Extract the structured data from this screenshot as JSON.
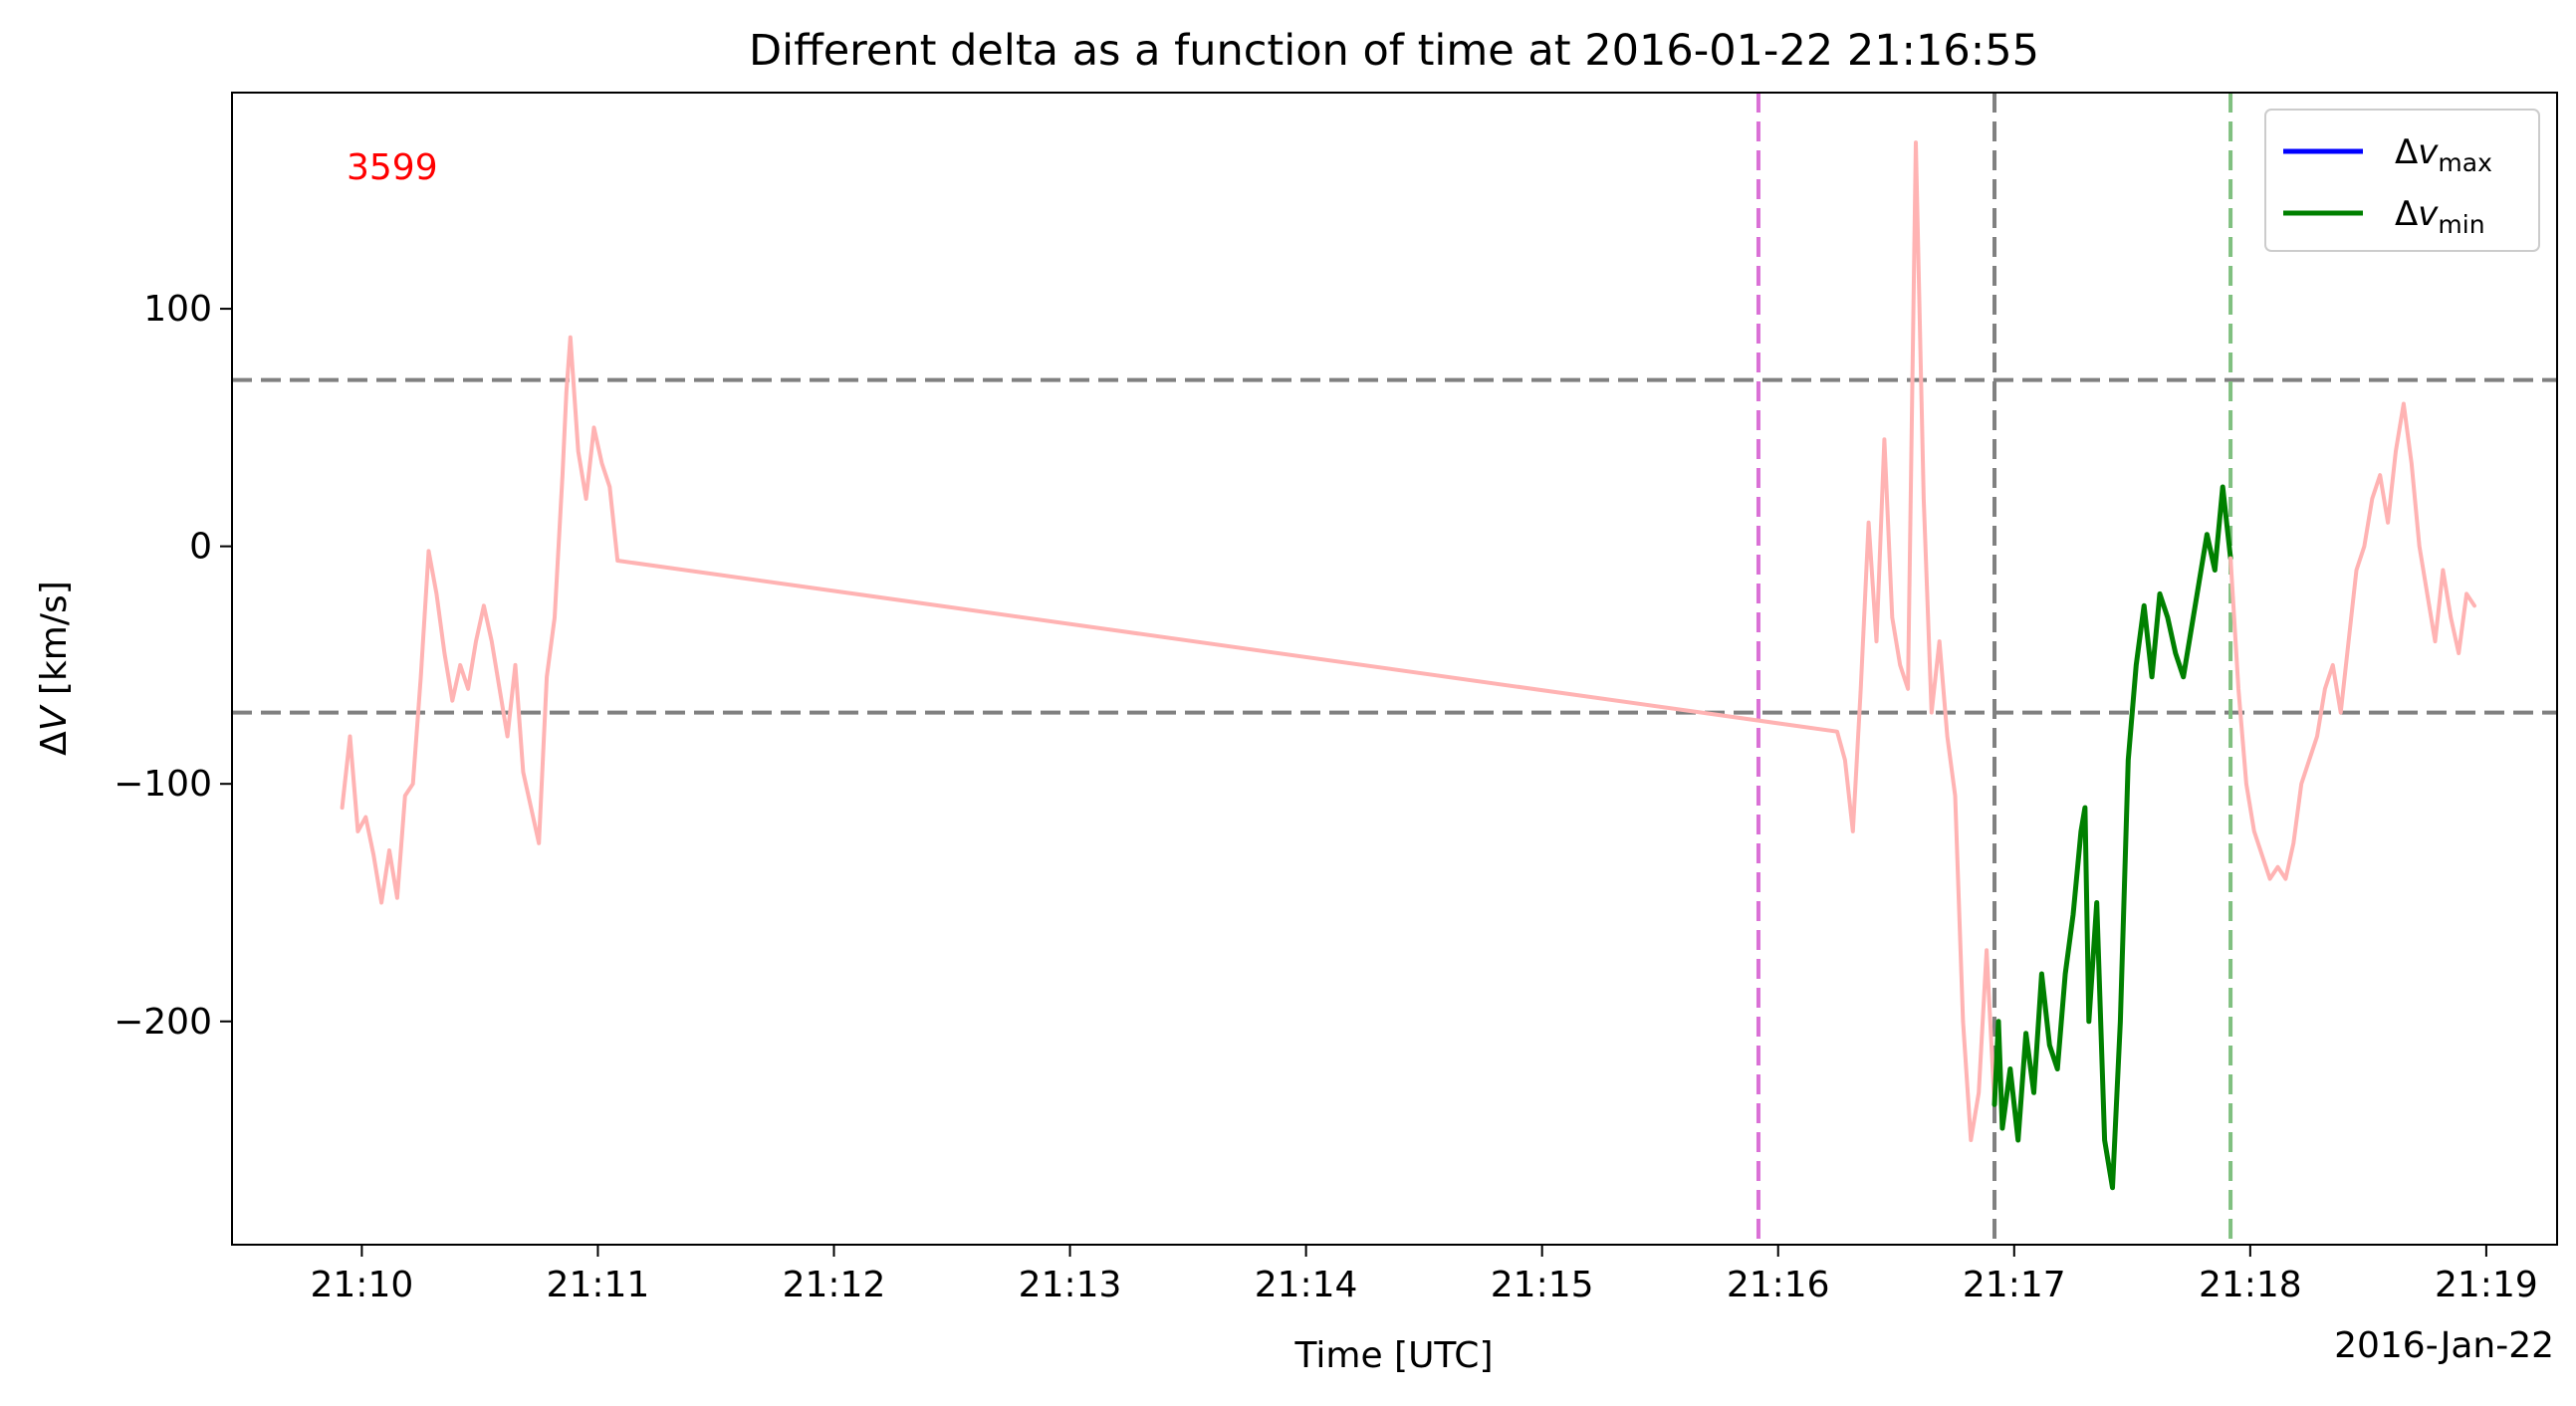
{
  "chart_data": {
    "type": "line",
    "title": "Different delta as a function of time at 2016-01-22 21:16:55",
    "xlabel": "Time [UTC]",
    "ylabel": "ΔV [km/s]",
    "x_offset_label": "2016-Jan-22",
    "annotation": {
      "text": "3599",
      "color": "#ff0000"
    },
    "xlim": [
      "21:09:27",
      "21:19:18"
    ],
    "ylim": [
      -294,
      191
    ],
    "x_ticks": [
      "21:10",
      "21:11",
      "21:12",
      "21:13",
      "21:14",
      "21:15",
      "21:16",
      "21:17",
      "21:18",
      "21:19"
    ],
    "y_ticks": [
      100,
      0,
      -100,
      -200
    ],
    "y_tick_labels": [
      "100",
      "0",
      "−100",
      "−200"
    ],
    "grid": false,
    "legend": {
      "location": "upper right",
      "entries": [
        {
          "base": "Δv",
          "sub": "max",
          "color": "#0000ff"
        },
        {
          "base": "Δv",
          "sub": "min",
          "color": "#008000"
        }
      ]
    },
    "hlines": [
      {
        "y": 70,
        "color": "#808080",
        "style": "dashed"
      },
      {
        "y": -70,
        "color": "#808080",
        "style": "dashed"
      }
    ],
    "vlines": [
      {
        "x": "21:15:55",
        "color": "#da70d6",
        "style": "dashed"
      },
      {
        "x": "21:16:55",
        "color": "#808080",
        "style": "dashed"
      },
      {
        "x": "21:17:55",
        "color": "#80c080",
        "style": "dashed"
      }
    ],
    "series": [
      {
        "color": "#ffb3b3",
        "points": [
          [
            "21:09:55",
            -110
          ],
          [
            "21:09:57",
            -80
          ],
          [
            "21:09:59",
            -120
          ],
          [
            "21:10:01",
            -114
          ],
          [
            "21:10:03",
            -130
          ],
          [
            "21:10:05",
            -150
          ],
          [
            "21:10:07",
            -128
          ],
          [
            "21:10:09",
            -148
          ],
          [
            "21:10:11",
            -105
          ],
          [
            "21:10:13",
            -100
          ],
          [
            "21:10:15",
            -55
          ],
          [
            "21:10:17",
            -2
          ],
          [
            "21:10:19",
            -20
          ],
          [
            "21:10:21",
            -45
          ],
          [
            "21:10:23",
            -65
          ],
          [
            "21:10:25",
            -50
          ],
          [
            "21:10:27",
            -60
          ],
          [
            "21:10:29",
            -40
          ],
          [
            "21:10:31",
            -25
          ],
          [
            "21:10:33",
            -40
          ],
          [
            "21:10:35",
            -60
          ],
          [
            "21:10:37",
            -80
          ],
          [
            "21:10:39",
            -50
          ],
          [
            "21:10:41",
            -95
          ],
          [
            "21:10:43",
            -110
          ],
          [
            "21:10:45",
            -125
          ],
          [
            "21:10:47",
            -55
          ],
          [
            "21:10:49",
            -30
          ],
          [
            "21:10:51",
            30
          ],
          [
            "21:10:52",
            65
          ],
          [
            "21:10:53",
            88
          ],
          [
            "21:10:55",
            40
          ],
          [
            "21:10:57",
            20
          ],
          [
            "21:10:59",
            50
          ],
          [
            "21:11:01",
            35
          ],
          [
            "21:11:03",
            25
          ],
          [
            "21:11:05",
            -6
          ],
          [
            "21:16:15",
            -78
          ],
          [
            "21:16:17",
            -90
          ],
          [
            "21:16:19",
            -120
          ],
          [
            "21:16:21",
            -60
          ],
          [
            "21:16:23",
            10
          ],
          [
            "21:16:25",
            -40
          ],
          [
            "21:16:27",
            45
          ],
          [
            "21:16:29",
            -30
          ],
          [
            "21:16:31",
            -50
          ],
          [
            "21:16:33",
            -60
          ],
          [
            "21:16:35",
            170
          ],
          [
            "21:16:37",
            20
          ],
          [
            "21:16:39",
            -70
          ],
          [
            "21:16:41",
            -40
          ],
          [
            "21:16:43",
            -80
          ],
          [
            "21:16:45",
            -105
          ],
          [
            "21:16:47",
            -200
          ],
          [
            "21:16:49",
            -250
          ],
          [
            "21:16:51",
            -230
          ],
          [
            "21:16:53",
            -170
          ],
          [
            "21:16:55",
            -235
          ]
        ]
      },
      {
        "color": "#008000",
        "points": [
          [
            "21:16:55",
            -235
          ],
          [
            "21:16:56",
            -200
          ],
          [
            "21:16:57",
            -245
          ],
          [
            "21:16:59",
            -220
          ],
          [
            "21:17:01",
            -250
          ],
          [
            "21:17:03",
            -205
          ],
          [
            "21:17:05",
            -230
          ],
          [
            "21:17:07",
            -180
          ],
          [
            "21:17:09",
            -210
          ],
          [
            "21:17:11",
            -220
          ],
          [
            "21:17:13",
            -180
          ],
          [
            "21:17:15",
            -155
          ],
          [
            "21:17:17",
            -120
          ],
          [
            "21:17:18",
            -110
          ],
          [
            "21:17:19",
            -200
          ],
          [
            "21:17:21",
            -150
          ],
          [
            "21:17:23",
            -250
          ],
          [
            "21:17:25",
            -270
          ],
          [
            "21:17:27",
            -200
          ],
          [
            "21:17:29",
            -90
          ],
          [
            "21:17:31",
            -50
          ],
          [
            "21:17:33",
            -25
          ],
          [
            "21:17:35",
            -55
          ],
          [
            "21:17:37",
            -20
          ],
          [
            "21:17:39",
            -30
          ],
          [
            "21:17:41",
            -45
          ],
          [
            "21:17:43",
            -55
          ],
          [
            "21:17:45",
            -35
          ],
          [
            "21:17:47",
            -15
          ],
          [
            "21:17:49",
            5
          ],
          [
            "21:17:51",
            -10
          ],
          [
            "21:17:53",
            25
          ],
          [
            "21:17:55",
            -5
          ]
        ]
      },
      {
        "color": "#ffb3b3",
        "points": [
          [
            "21:17:55",
            -5
          ],
          [
            "21:17:57",
            -60
          ],
          [
            "21:17:59",
            -100
          ],
          [
            "21:18:01",
            -120
          ],
          [
            "21:18:03",
            -130
          ],
          [
            "21:18:05",
            -140
          ],
          [
            "21:18:07",
            -135
          ],
          [
            "21:18:09",
            -140
          ],
          [
            "21:18:11",
            -125
          ],
          [
            "21:18:13",
            -100
          ],
          [
            "21:18:15",
            -90
          ],
          [
            "21:18:17",
            -80
          ],
          [
            "21:18:19",
            -60
          ],
          [
            "21:18:21",
            -50
          ],
          [
            "21:18:23",
            -70
          ],
          [
            "21:18:25",
            -40
          ],
          [
            "21:18:27",
            -10
          ],
          [
            "21:18:29",
            0
          ],
          [
            "21:18:31",
            20
          ],
          [
            "21:18:33",
            30
          ],
          [
            "21:18:35",
            10
          ],
          [
            "21:18:37",
            40
          ],
          [
            "21:18:39",
            60
          ],
          [
            "21:18:41",
            35
          ],
          [
            "21:18:43",
            0
          ],
          [
            "21:18:45",
            -20
          ],
          [
            "21:18:47",
            -40
          ],
          [
            "21:18:49",
            -10
          ],
          [
            "21:18:51",
            -30
          ],
          [
            "21:18:53",
            -45
          ],
          [
            "21:18:55",
            -20
          ],
          [
            "21:18:57",
            -25
          ]
        ]
      }
    ]
  }
}
